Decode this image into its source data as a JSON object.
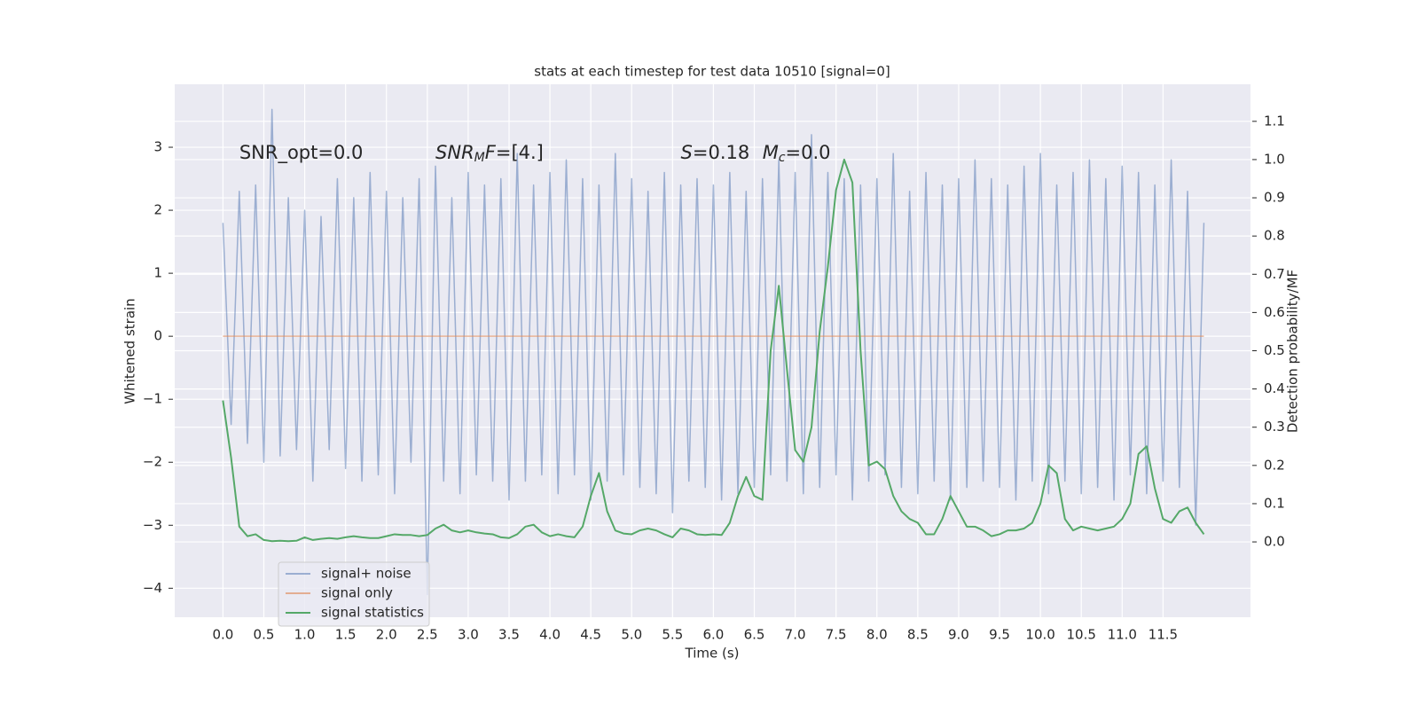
{
  "chart_data": {
    "type": "line",
    "title": "stats at each timestep for test data 10510 [signal=0]",
    "xlabel": "Time (s)",
    "ylabel": "Whitened strain",
    "y2label": "Detection probability/MF",
    "xlim": [
      -0.59,
      12.57
    ],
    "ylim": [
      -4.46,
      4.0
    ],
    "y2lim": [
      -0.197,
      1.197
    ],
    "xticks": [
      {
        "value": 0,
        "label": "0.0"
      },
      0.5,
      {
        "value": 1,
        "label": "1.0"
      },
      1.5,
      {
        "value": 2,
        "label": "2.0"
      },
      2.5,
      {
        "value": 3,
        "label": "3.0"
      },
      3.5,
      {
        "value": 4,
        "label": "4.0"
      },
      4.5,
      {
        "value": 5,
        "label": "5.0"
      },
      5.5,
      {
        "value": 6,
        "label": "6.0"
      },
      6.5,
      {
        "value": 7,
        "label": "7.0"
      },
      7.5,
      {
        "value": 8,
        "label": "8.0"
      },
      8.5,
      {
        "value": 9,
        "label": "9.0"
      },
      9.5,
      {
        "value": 10,
        "label": "10.0"
      },
      10.5,
      {
        "value": 11,
        "label": "11.0"
      },
      11.5
    ],
    "yticks": [
      {
        "value": -4,
        "label": "−4"
      },
      {
        "value": -3,
        "label": "−3"
      },
      {
        "value": -2,
        "label": "−2"
      },
      {
        "value": -1,
        "label": "−1"
      },
      0,
      1,
      2,
      3
    ],
    "y2ticks": [
      {
        "value": 0,
        "label": "0.0"
      },
      0.1,
      0.2,
      0.3,
      0.4,
      0.5,
      0.6,
      0.7,
      0.8,
      0.9,
      {
        "value": 1,
        "label": "1.0"
      },
      1.1
    ],
    "grid": true,
    "legend": "lower left",
    "annotations": [
      {
        "x": 0.2,
        "y": 2.9,
        "parts": [
          {
            "text": "SNR_opt=0.0",
            "style": "normal"
          }
        ]
      },
      {
        "x": 2.6,
        "y": 2.9,
        "parts": [
          {
            "text": "SNR",
            "style": "italic"
          },
          {
            "text": "M",
            "style": "sub"
          },
          {
            "text": "F",
            "style": "italic"
          },
          {
            "text": "=[4.]",
            "style": "normal"
          }
        ]
      },
      {
        "x": 5.6,
        "y": 2.9,
        "parts": [
          {
            "text": "S",
            "style": "italic"
          },
          {
            "text": "=0.18",
            "style": "normal"
          }
        ]
      },
      {
        "x": 6.6,
        "y": 2.9,
        "parts": [
          {
            "text": "M",
            "style": "italic"
          },
          {
            "text": "c",
            "style": "sub"
          },
          {
            "text": "=0.0",
            "style": "normal"
          }
        ]
      }
    ],
    "x": [
      0.0,
      0.1,
      0.2,
      0.3,
      0.4,
      0.5,
      0.6,
      0.7,
      0.8,
      0.9,
      1.0,
      1.1,
      1.2,
      1.3,
      1.4,
      1.5,
      1.6,
      1.7,
      1.8,
      1.9,
      2.0,
      2.1,
      2.2,
      2.3,
      2.4,
      2.5,
      2.6,
      2.7,
      2.8,
      2.9,
      3.0,
      3.1,
      3.2,
      3.3,
      3.4,
      3.5,
      3.6,
      3.7,
      3.8,
      3.9,
      4.0,
      4.1,
      4.2,
      4.3,
      4.4,
      4.5,
      4.6,
      4.7,
      4.8,
      4.9,
      5.0,
      5.1,
      5.2,
      5.3,
      5.4,
      5.5,
      5.6,
      5.7,
      5.8,
      5.9,
      6.0,
      6.1,
      6.2,
      6.3,
      6.4,
      6.5,
      6.6,
      6.7,
      6.8,
      6.9,
      7.0,
      7.1,
      7.2,
      7.3,
      7.4,
      7.5,
      7.6,
      7.7,
      7.8,
      7.9,
      8.0,
      8.1,
      8.2,
      8.3,
      8.4,
      8.5,
      8.6,
      8.7,
      8.8,
      8.9,
      9.0,
      9.1,
      9.2,
      9.3,
      9.4,
      9.5,
      9.6,
      9.7,
      9.8,
      9.9,
      10.0,
      10.1,
      10.2,
      10.3,
      10.4,
      10.5,
      10.6,
      10.7,
      10.8,
      10.9,
      11.0,
      11.1,
      11.2,
      11.3,
      11.4,
      11.5,
      11.6,
      11.7,
      11.8,
      11.9,
      12.0
    ],
    "series": [
      {
        "name": "signal+ noise",
        "color": "#4c72b0",
        "opacity": 0.5,
        "axis": "y",
        "values": [
          1.8,
          -1.4,
          2.3,
          -1.7,
          2.4,
          -2.0,
          3.6,
          -1.9,
          2.2,
          -1.8,
          2.0,
          -2.3,
          1.9,
          -1.8,
          2.5,
          -2.1,
          2.2,
          -2.3,
          2.6,
          -2.2,
          2.3,
          -2.5,
          2.2,
          -2.0,
          2.5,
          -4.1,
          2.7,
          -2.3,
          2.2,
          -2.5,
          2.6,
          -2.2,
          2.4,
          -2.3,
          2.5,
          -2.6,
          2.9,
          -2.3,
          2.4,
          -2.2,
          2.6,
          -2.5,
          2.8,
          -2.2,
          2.5,
          -2.6,
          2.4,
          -2.3,
          2.9,
          -2.2,
          2.5,
          -2.4,
          2.3,
          -2.5,
          2.6,
          -2.8,
          2.4,
          -2.3,
          2.5,
          -2.4,
          2.4,
          -2.6,
          2.6,
          -2.5,
          2.3,
          -2.4,
          2.5,
          -2.2,
          2.8,
          -2.3,
          2.6,
          -2.5,
          3.2,
          -2.4,
          2.6,
          -2.2,
          2.5,
          -2.6,
          2.4,
          -2.3,
          2.5,
          -2.2,
          2.9,
          -2.4,
          2.3,
          -2.5,
          2.6,
          -2.3,
          2.4,
          -2.6,
          2.5,
          -2.4,
          2.8,
          -2.3,
          2.5,
          -2.4,
          2.4,
          -2.6,
          2.7,
          -2.3,
          2.9,
          -2.5,
          2.4,
          -2.3,
          2.6,
          -2.5,
          2.8,
          -2.4,
          2.5,
          -2.6,
          2.7,
          -2.2,
          2.6,
          -2.5,
          2.4,
          -2.3,
          2.8,
          -2.4,
          2.3,
          -3.0,
          1.8
        ]
      },
      {
        "name": "signal only",
        "color": "#dd8452",
        "opacity": 0.6,
        "axis": "y",
        "values": [
          0,
          0,
          0,
          0,
          0,
          0,
          0,
          0,
          0,
          0,
          0,
          0,
          0,
          0,
          0,
          0,
          0,
          0,
          0,
          0,
          0,
          0,
          0,
          0,
          0,
          0,
          0,
          0,
          0,
          0,
          0,
          0,
          0,
          0,
          0,
          0,
          0,
          0,
          0,
          0,
          0,
          0,
          0,
          0,
          0,
          0,
          0,
          0,
          0,
          0,
          0,
          0,
          0,
          0,
          0,
          0,
          0,
          0,
          0,
          0,
          0,
          0,
          0,
          0,
          0,
          0,
          0,
          0,
          0,
          0,
          0,
          0,
          0,
          0,
          0,
          0,
          0,
          0,
          0,
          0,
          0,
          0,
          0,
          0,
          0,
          0,
          0,
          0,
          0,
          0,
          0,
          0,
          0,
          0,
          0,
          0,
          0,
          0,
          0,
          0,
          0,
          0,
          0,
          0,
          0,
          0,
          0,
          0,
          0,
          0,
          0,
          0,
          0,
          0,
          0,
          0,
          0,
          0,
          0,
          0,
          0
        ]
      },
      {
        "name": "signal statistics",
        "color": "#55a868",
        "opacity": 1,
        "axis": "y2",
        "values": [
          0.37,
          0.22,
          0.04,
          0.015,
          0.02,
          0.005,
          0.002,
          0.003,
          0.002,
          0.003,
          0.012,
          0.005,
          0.008,
          0.01,
          0.008,
          0.012,
          0.015,
          0.012,
          0.01,
          0.01,
          0.015,
          0.02,
          0.018,
          0.018,
          0.015,
          0.018,
          0.035,
          0.045,
          0.03,
          0.025,
          0.03,
          0.025,
          0.022,
          0.02,
          0.012,
          0.01,
          0.02,
          0.04,
          0.045,
          0.025,
          0.015,
          0.02,
          0.015,
          0.012,
          0.04,
          0.12,
          0.18,
          0.08,
          0.03,
          0.022,
          0.02,
          0.03,
          0.035,
          0.03,
          0.02,
          0.012,
          0.035,
          0.03,
          0.02,
          0.018,
          0.02,
          0.018,
          0.05,
          0.12,
          0.17,
          0.12,
          0.11,
          0.5,
          0.67,
          0.45,
          0.24,
          0.21,
          0.3,
          0.55,
          0.72,
          0.92,
          1.0,
          0.94,
          0.5,
          0.2,
          0.21,
          0.19,
          0.12,
          0.08,
          0.06,
          0.05,
          0.02,
          0.02,
          0.06,
          0.12,
          0.08,
          0.04,
          0.04,
          0.03,
          0.015,
          0.02,
          0.03,
          0.03,
          0.035,
          0.05,
          0.1,
          0.2,
          0.18,
          0.06,
          0.03,
          0.04,
          0.035,
          0.03,
          0.035,
          0.04,
          0.06,
          0.1,
          0.23,
          0.25,
          0.14,
          0.06,
          0.05,
          0.08,
          0.09,
          0.05,
          0.02
        ]
      }
    ]
  }
}
